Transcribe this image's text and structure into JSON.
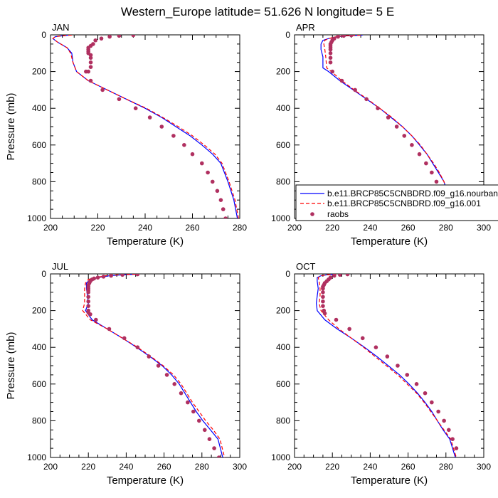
{
  "title": "Western_Europe  latitude= 51.626 N longitude= 5 E",
  "colors": {
    "model": "#0000ff",
    "cntl": "#ff0000",
    "obs": "#b03060",
    "frame": "#000000"
  },
  "chart_data": [
    {
      "type": "line",
      "panel_label": "JAN",
      "xlabel": "Temperature (K)",
      "ylabel": "Pressure (mb)",
      "xlim": [
        200,
        280
      ],
      "ylim": [
        1000,
        0
      ],
      "xticks": [
        200,
        220,
        240,
        260,
        280
      ],
      "yticks": [
        0,
        200,
        400,
        600,
        800,
        1000
      ],
      "series": [
        {
          "role": "model",
          "x": [
            208,
            205,
            202,
            201,
            203,
            207,
            209,
            209.5,
            211,
            216,
            224,
            232,
            240,
            247,
            253,
            259,
            264,
            268.5,
            272,
            275,
            277.5,
            279
          ],
          "y": [
            1,
            5,
            10,
            20,
            40,
            70,
            100,
            150,
            200,
            250,
            300,
            350,
            400,
            450,
            500,
            550,
            600,
            650,
            700,
            800,
            900,
            1000
          ]
        },
        {
          "role": "cntl",
          "x": [
            209,
            205,
            202,
            201,
            203,
            207,
            208.5,
            209.5,
            211,
            216,
            224,
            232,
            240.5,
            247.5,
            254,
            260,
            265,
            269.5,
            272.5,
            275.5,
            278,
            279.5
          ],
          "y": [
            1,
            5,
            10,
            20,
            40,
            70,
            100,
            150,
            200,
            250,
            300,
            350,
            400,
            450,
            500,
            550,
            600,
            650,
            700,
            800,
            900,
            1000
          ]
        },
        {
          "role": "obs",
          "x": [
            235,
            229,
            225,
            221.5,
            219,
            218,
            217,
            216,
            216,
            216,
            216,
            217,
            217,
            217,
            217,
            216,
            215,
            217,
            222,
            229,
            236,
            242,
            247,
            252,
            256.5,
            260,
            264,
            266.5,
            268.5,
            270.5,
            272,
            273,
            274
          ],
          "y": [
            2,
            5,
            10,
            20,
            30,
            50,
            60,
            70,
            80,
            90,
            100,
            110,
            125,
            150,
            175,
            200,
            200,
            250,
            300,
            350,
            400,
            450,
            500,
            550,
            600,
            650,
            700,
            750,
            800,
            850,
            900,
            950,
            1000
          ]
        }
      ]
    },
    {
      "type": "line",
      "panel_label": "APR",
      "xlabel": "Temperature (K)",
      "ylabel": "",
      "xlim": [
        200,
        300
      ],
      "ylim": [
        1000,
        0
      ],
      "xticks": [
        200,
        220,
        240,
        260,
        280,
        300
      ],
      "yticks": [
        0,
        200,
        400,
        600,
        800,
        1000
      ],
      "legend": {
        "position": "middle-right",
        "labels": [
          "b.e11.BRCP85C5CNBDRD.f09_g16.nourban",
          "b.e11.BRCP85C5CNBDRD.f09_g16.001",
          "raobs"
        ]
      },
      "series": [
        {
          "role": "model",
          "x": [
            236,
            228,
            223,
            218,
            215,
            214,
            214,
            215,
            215,
            218,
            224,
            231,
            238,
            245,
            251,
            257,
            262,
            266,
            270,
            273,
            276,
            279,
            282,
            284
          ],
          "y": [
            1,
            5,
            10,
            20,
            30,
            50,
            80,
            120,
            180,
            200,
            250,
            300,
            350,
            400,
            450,
            500,
            550,
            600,
            650,
            700,
            750,
            800,
            900,
            1000
          ]
        },
        {
          "role": "cntl",
          "x": [
            235,
            227,
            222,
            218,
            216,
            215.5,
            216,
            216.5,
            217,
            219.5,
            225,
            231.5,
            238.5,
            245,
            251.5,
            257,
            262,
            266.5,
            270,
            273.5,
            276.5,
            279,
            282,
            284.5
          ],
          "y": [
            1,
            5,
            10,
            20,
            30,
            50,
            80,
            120,
            180,
            200,
            250,
            300,
            350,
            400,
            450,
            500,
            550,
            600,
            650,
            700,
            750,
            800,
            900,
            1000
          ]
        },
        {
          "role": "obs",
          "x": [
            230,
            226,
            223,
            221,
            220,
            219.5,
            219,
            219,
            219,
            219,
            219,
            219,
            219,
            220,
            225,
            232,
            238,
            244,
            249.5,
            254,
            258,
            262,
            266,
            269.5,
            272.5,
            275,
            277.5,
            279.5,
            281
          ],
          "y": [
            2,
            5,
            10,
            20,
            30,
            40,
            50,
            60,
            70,
            80,
            100,
            125,
            150,
            200,
            250,
            300,
            350,
            400,
            450,
            500,
            550,
            600,
            650,
            700,
            750,
            800,
            850,
            900,
            950
          ]
        }
      ]
    },
    {
      "type": "line",
      "panel_label": "JUL",
      "xlabel": "Temperature (K)",
      "ylabel": "Pressure (mb)",
      "xlim": [
        200,
        300
      ],
      "ylim": [
        1000,
        0
      ],
      "xticks": [
        200,
        220,
        240,
        260,
        280,
        300
      ],
      "yticks": [
        0,
        200,
        400,
        600,
        800,
        1000
      ],
      "series": [
        {
          "role": "model",
          "x": [
            247,
            238,
            231,
            225,
            221,
            219,
            219,
            219.5,
            220,
            218.5,
            222,
            230,
            238,
            245.5,
            252.5,
            259,
            264,
            268,
            271,
            274,
            277,
            280.5,
            284.5,
            288.5,
            291
          ],
          "y": [
            1,
            5,
            10,
            20,
            30,
            50,
            80,
            120,
            160,
            200,
            250,
            300,
            350,
            400,
            450,
            500,
            550,
            600,
            650,
            700,
            750,
            800,
            850,
            900,
            1000
          ]
        },
        {
          "role": "cntl",
          "x": [
            245,
            236,
            229,
            224,
            220,
            218.5,
            218,
            218,
            218,
            217,
            221,
            230,
            238,
            246,
            253,
            259.5,
            265,
            269,
            272,
            275,
            278.5,
            282,
            286,
            289.5,
            292
          ],
          "y": [
            1,
            5,
            10,
            20,
            30,
            50,
            80,
            120,
            160,
            200,
            250,
            300,
            350,
            400,
            450,
            500,
            550,
            600,
            650,
            700,
            750,
            800,
            850,
            900,
            1000
          ]
        },
        {
          "role": "obs",
          "x": [
            246,
            238,
            232,
            228,
            225,
            223,
            222,
            221,
            220.5,
            220,
            220,
            220,
            220,
            220,
            220,
            220,
            220,
            220,
            220,
            221,
            224,
            231,
            239,
            246,
            252,
            257,
            261.5,
            265.5,
            269,
            272.5,
            275.5,
            278.5,
            281.5,
            284,
            286.5,
            289
          ],
          "y": [
            2,
            5,
            10,
            15,
            20,
            25,
            30,
            40,
            50,
            60,
            70,
            80,
            90,
            100,
            125,
            150,
            175,
            200,
            210,
            220,
            250,
            300,
            350,
            400,
            450,
            500,
            550,
            600,
            650,
            700,
            750,
            800,
            850,
            900,
            950,
            1000
          ]
        }
      ]
    },
    {
      "type": "line",
      "panel_label": "OCT",
      "xlabel": "Temperature (K)",
      "ylabel": "",
      "xlim": [
        200,
        300
      ],
      "ylim": [
        1000,
        0
      ],
      "xticks": [
        200,
        220,
        240,
        260,
        280,
        300
      ],
      "yticks": [
        0,
        200,
        400,
        600,
        800,
        1000
      ],
      "series": [
        {
          "role": "model",
          "x": [
            222,
            217,
            214,
            212,
            212,
            212.5,
            212,
            211.5,
            212,
            216,
            222.5,
            230,
            237,
            243.5,
            249.5,
            255.5,
            260.5,
            265,
            269,
            272.5,
            275.5,
            278.5,
            282,
            285
          ],
          "y": [
            1,
            5,
            10,
            20,
            40,
            80,
            120,
            160,
            200,
            250,
            300,
            350,
            400,
            450,
            500,
            550,
            600,
            650,
            700,
            750,
            800,
            850,
            900,
            1000
          ]
        },
        {
          "role": "cntl",
          "x": [
            222,
            217,
            214,
            212.5,
            213,
            213.5,
            213.5,
            213,
            214,
            218,
            223.5,
            230,
            236.5,
            242.5,
            248.5,
            254.5,
            259.5,
            264.5,
            268.5,
            272,
            275.5,
            279,
            282.5,
            285.5
          ],
          "y": [
            1,
            5,
            10,
            20,
            40,
            80,
            120,
            160,
            200,
            250,
            300,
            350,
            400,
            450,
            500,
            550,
            600,
            650,
            700,
            750,
            800,
            850,
            900,
            1000
          ]
        },
        {
          "role": "obs",
          "x": [
            228,
            224,
            221,
            219,
            218,
            217,
            216,
            215.5,
            215,
            215,
            215,
            215,
            215,
            215,
            215.5,
            216,
            222,
            229,
            236,
            243,
            249,
            254.5,
            259.5,
            264.5,
            269,
            272.5,
            276,
            279,
            281.5,
            283.5,
            285.5
          ],
          "y": [
            2,
            5,
            10,
            20,
            30,
            40,
            50,
            60,
            70,
            80,
            100,
            125,
            150,
            175,
            200,
            215,
            250,
            300,
            350,
            400,
            450,
            500,
            550,
            600,
            650,
            700,
            750,
            800,
            850,
            900,
            950
          ]
        }
      ]
    }
  ]
}
